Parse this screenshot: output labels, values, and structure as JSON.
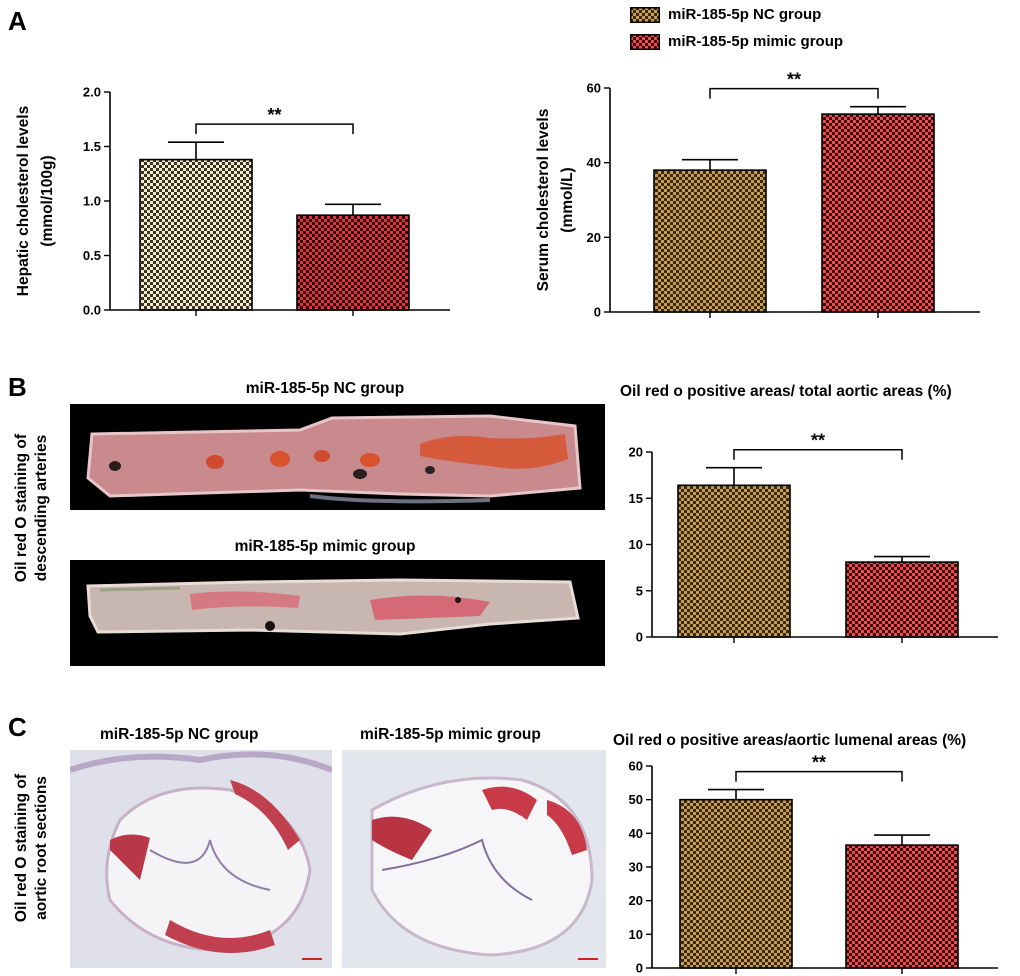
{
  "panels": {
    "a": "A",
    "b": "B",
    "c": "C"
  },
  "legend": {
    "items": [
      {
        "label": "miR-185-5p NC group",
        "color": "#c8a45a"
      },
      {
        "label": "miR-185-5p mimic group",
        "color": "#e0353e"
      }
    ]
  },
  "panel_b": {
    "nc_caption": "miR-185-5p NC group",
    "mimic_caption": "miR-185-5p mimic group",
    "side_line1": "Oil red O staining of",
    "side_line2": "descending arteries",
    "chart_title": "Oil red o positive areas/ total aortic areas (%)"
  },
  "panel_c": {
    "nc_caption": "miR-185-5p NC group",
    "mimic_caption": "miR-185-5p mimic group",
    "side_line1": "Oil red O staining of",
    "side_line2": "aortic root sections",
    "chart_title": "Oil red o positive areas/aortic lumenal areas (%)"
  },
  "colors": {
    "nc_light": "#f4ead2",
    "nc_dark": "#3a3322",
    "nc_brown_light": "#c89c52",
    "mimic_red": "#e0353e",
    "mimic_dark": "#2a0a0a"
  },
  "chart_data": [
    {
      "type": "bar",
      "categories": [
        "miR-185-5p NC group",
        "miR-185-5p mimic group"
      ],
      "values": [
        1.38,
        0.87
      ],
      "errors": [
        0.16,
        0.1
      ],
      "ylabel_line1": "Hepatic cholesterol levels",
      "ylabel_line2": "(mmol/100g)",
      "ylim": [
        0,
        2.0
      ],
      "yticks": [
        "0.0",
        "0.5",
        "1.0",
        "1.5",
        "2.0"
      ],
      "significance": "**"
    },
    {
      "type": "bar",
      "categories": [
        "miR-185-5p NC group",
        "miR-185-5p mimic group"
      ],
      "values": [
        38,
        53
      ],
      "errors": [
        2.8,
        2.0
      ],
      "ylabel_line1": "Serum cholesterol levels",
      "ylabel_line2": "(mmol/L)",
      "ylim": [
        0,
        60
      ],
      "yticks": [
        "0",
        "20",
        "40",
        "60"
      ],
      "significance": "**"
    },
    {
      "type": "bar",
      "categories": [
        "miR-185-5p NC group",
        "miR-185-5p mimic group"
      ],
      "values": [
        16.4,
        8.1
      ],
      "errors": [
        1.9,
        0.6
      ],
      "title": "Oil red o positive areas/ total aortic areas (%)",
      "ylim": [
        0,
        20
      ],
      "yticks": [
        "0",
        "5",
        "10",
        "15",
        "20"
      ],
      "significance": "**"
    },
    {
      "type": "bar",
      "categories": [
        "miR-185-5p NC group",
        "miR-185-5p mimic group"
      ],
      "values": [
        50,
        36.5
      ],
      "errors": [
        3.0,
        3.0
      ],
      "title": "Oil red o positive areas/aortic lumenal areas (%)",
      "ylim": [
        0,
        60
      ],
      "yticks": [
        "0",
        "10",
        "20",
        "30",
        "40",
        "50",
        "60"
      ],
      "significance": "**"
    }
  ]
}
